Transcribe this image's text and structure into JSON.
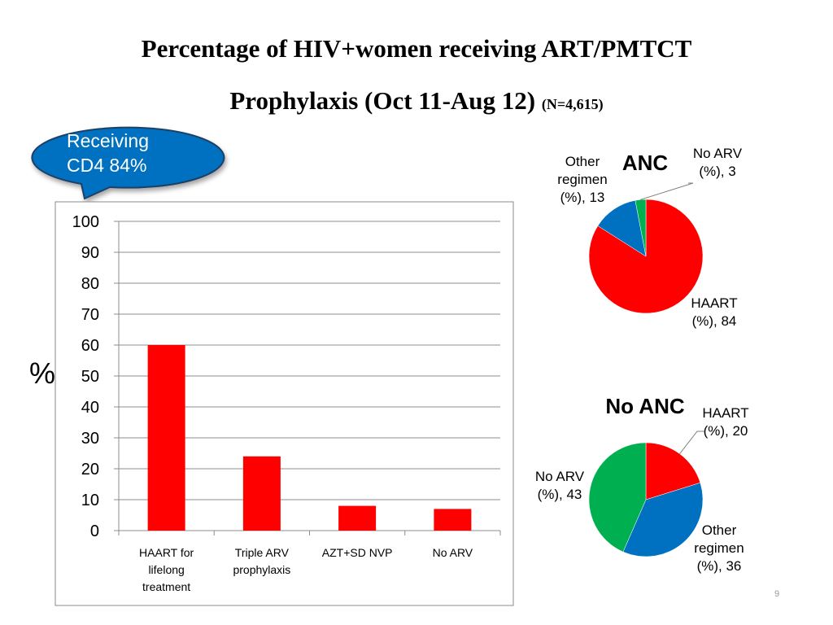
{
  "slide": {
    "title_line1": "Percentage of HIV+women receiving ART/PMTCT",
    "title_line2": "Prophylaxis (Oct 11-Aug 12)",
    "title_n": "(N=4,615)",
    "bubble_line1": "Receiving",
    "bubble_line2": "CD4  84%",
    "page_number": "9"
  },
  "colors": {
    "bar": "#ff0000",
    "red": "#ff0000",
    "blue": "#0070c0",
    "green": "#00b050",
    "bubble": "#0070c0"
  },
  "chart_data": [
    {
      "type": "bar",
      "categories": [
        [
          "HAART for",
          "lifelong",
          "treatment"
        ],
        [
          "Triple ARV",
          "prophylaxis"
        ],
        [
          "AZT+SD NVP"
        ],
        [
          "No ARV"
        ]
      ],
      "values": [
        60,
        24,
        8,
        7
      ],
      "ylabel": "%",
      "ylim": [
        0,
        100
      ],
      "yticks": [
        0,
        10,
        20,
        30,
        40,
        50,
        60,
        70,
        80,
        90,
        100
      ],
      "grid": true
    },
    {
      "type": "pie",
      "title": "ANC",
      "slices": [
        {
          "label": [
            "HAART",
            "(%), 84"
          ],
          "value": 84,
          "color": "#ff0000"
        },
        {
          "label": [
            "Other",
            "regimen",
            "(%), 13"
          ],
          "value": 13,
          "color": "#0070c0"
        },
        {
          "label": [
            "No ARV",
            "(%), 3"
          ],
          "value": 3,
          "color": "#00b050"
        }
      ]
    },
    {
      "type": "pie",
      "title": "No ANC",
      "slices": [
        {
          "label": [
            "HAART",
            "(%), 20"
          ],
          "value": 20,
          "color": "#ff0000"
        },
        {
          "label": [
            "Other",
            "regimen",
            "(%), 36"
          ],
          "value": 36,
          "color": "#0070c0"
        },
        {
          "label": [
            "No ARV",
            "(%), 43"
          ],
          "value": 43,
          "color": "#00b050"
        }
      ]
    }
  ]
}
